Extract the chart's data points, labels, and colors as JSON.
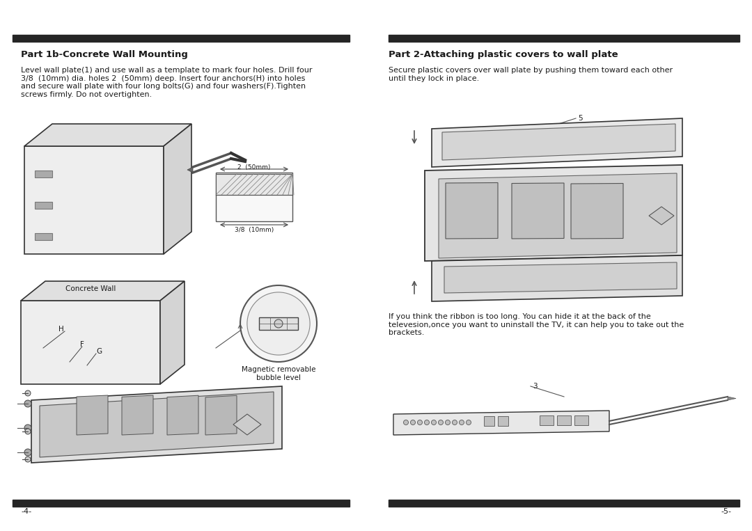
{
  "bg_color": "#ffffff",
  "bar_color": "#252525",
  "text_color": "#1a1a1a",
  "line_color": "#333333",
  "title_left": "Part 1b-Concrete Wall Mounting",
  "title_right": "Part 2-Attaching plastic covers to wall plate",
  "text_left": "Level wall plate(1) and use wall as a template to mark four holes. Drill four\n3/8  (10mm) dia. holes 2  (50mm) deep. Insert four anchors(H) into holes\nand secure wall plate with four long bolts(G) and four washers(F).Tighten\nscrews firmly. Do not overtighten.",
  "text_right_1": "Secure plastic covers over wall plate by pushing them toward each other\nuntil they lock in place.",
  "text_right_2": "If you think the ribbon is too long. You can hide it at the back of the\ntelevesion,once you want to uninstall the TV, it can help you to take out the\nbrackets.",
  "label_concrete": "Concrete Wall",
  "label_magnetic": "Magnetic removable\nbubble level",
  "label_H": "H",
  "label_F": "F",
  "label_G": "G",
  "label_dim1": "2  (50mm)",
  "label_dim2": "3/8  (10mm)",
  "label_5": "5",
  "label_3": "3",
  "page_left": "-4-",
  "page_right": "-5-",
  "font_size_title": 9.5,
  "font_size_body": 8.0,
  "font_size_label": 7.5,
  "font_size_small": 6.5,
  "font_size_page": 8.0
}
